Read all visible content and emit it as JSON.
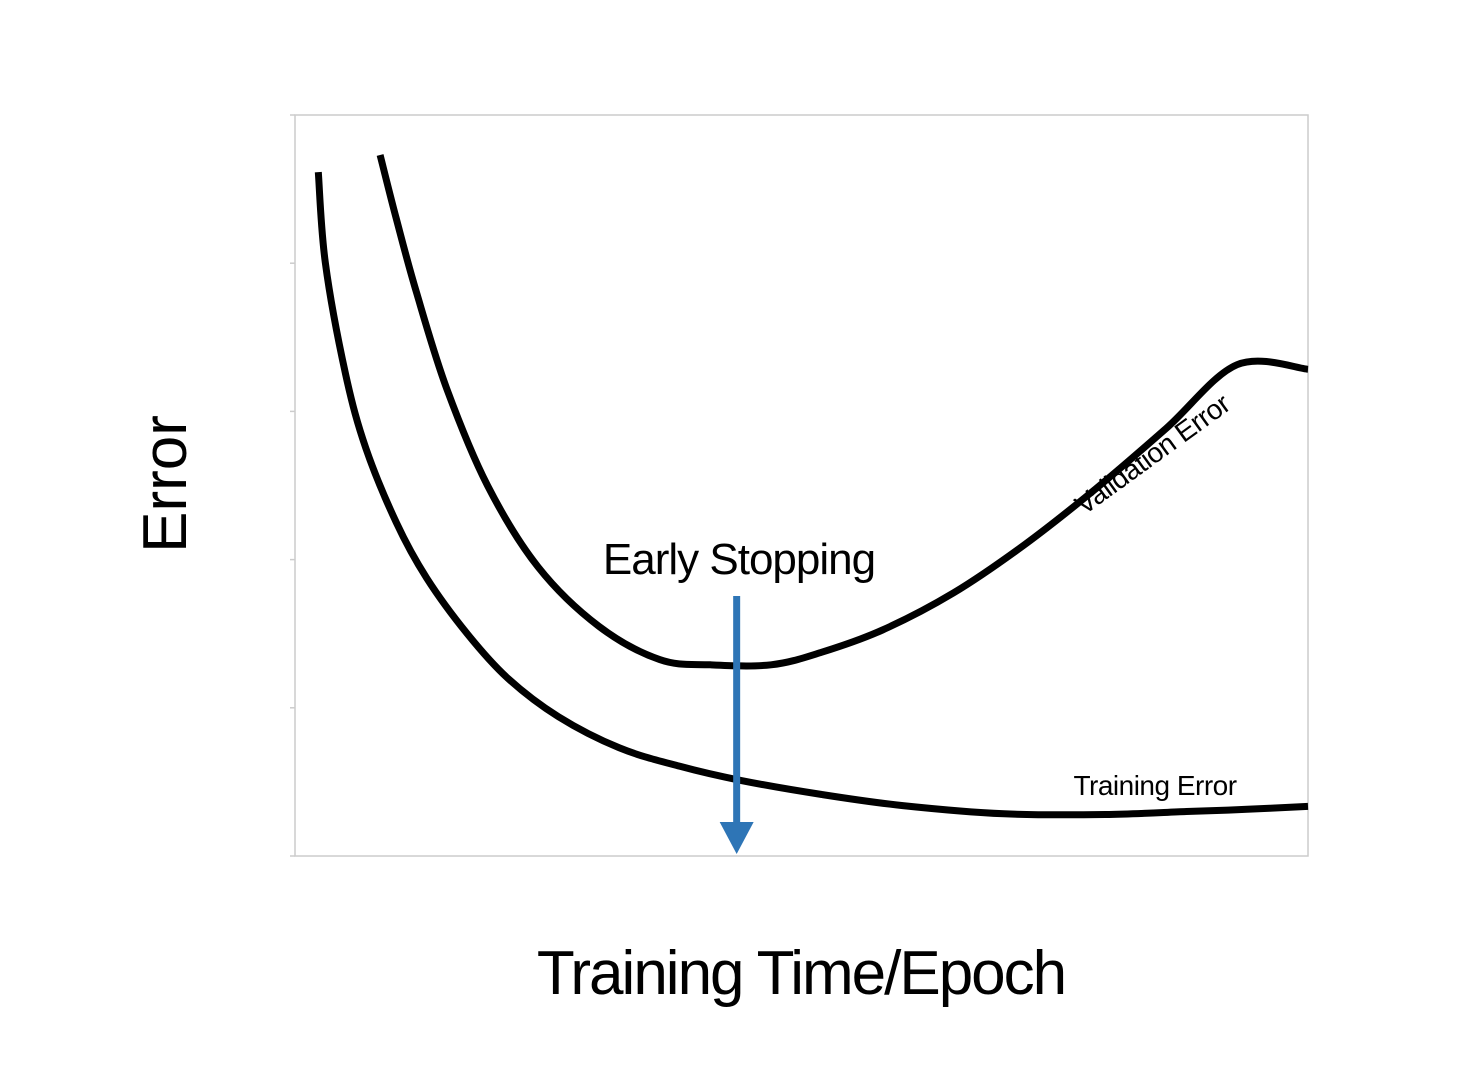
{
  "chart_data": {
    "type": "line",
    "xlabel": "Training Time/Epoch",
    "ylabel": "Error",
    "xlim": [
      0,
      100
    ],
    "ylim": [
      0,
      100
    ],
    "y_ticks": [
      0,
      20,
      40,
      60,
      80,
      100
    ],
    "grid": false,
    "legend": "none",
    "series": [
      {
        "name": "Validation Error",
        "x": [
          8.4,
          10,
          12,
          15,
          19,
          24,
          30,
          36,
          41,
          47,
          52,
          58,
          65,
          72,
          79,
          86,
          93,
          100
        ],
        "y": [
          94.6,
          86,
          76,
          63,
          50,
          39,
          31,
          26.5,
          25.8,
          25.8,
          27.5,
          30.5,
          35.5,
          42,
          49.5,
          57.7,
          66.3,
          65.7
        ]
      },
      {
        "name": "Training Error",
        "x": [
          2.3,
          3,
          5,
          7,
          10,
          13,
          17,
          21,
          26,
          32,
          38,
          44,
          52,
          60,
          70,
          80,
          88,
          94,
          100
        ],
        "y": [
          92.3,
          80,
          65,
          55,
          45,
          37.5,
          30,
          24,
          18.8,
          14.6,
          12.1,
          10.2,
          8.3,
          6.8,
          5.7,
          5.6,
          6,
          6.3,
          6.7
        ]
      }
    ],
    "annotations": [
      {
        "text": "Early Stopping",
        "type": "arrow-down",
        "x": 43.6,
        "color": "#2e75b6"
      }
    ],
    "colors": {
      "curves": "#000000",
      "arrow": "#2e75b6",
      "frame": "#cccccc"
    }
  }
}
